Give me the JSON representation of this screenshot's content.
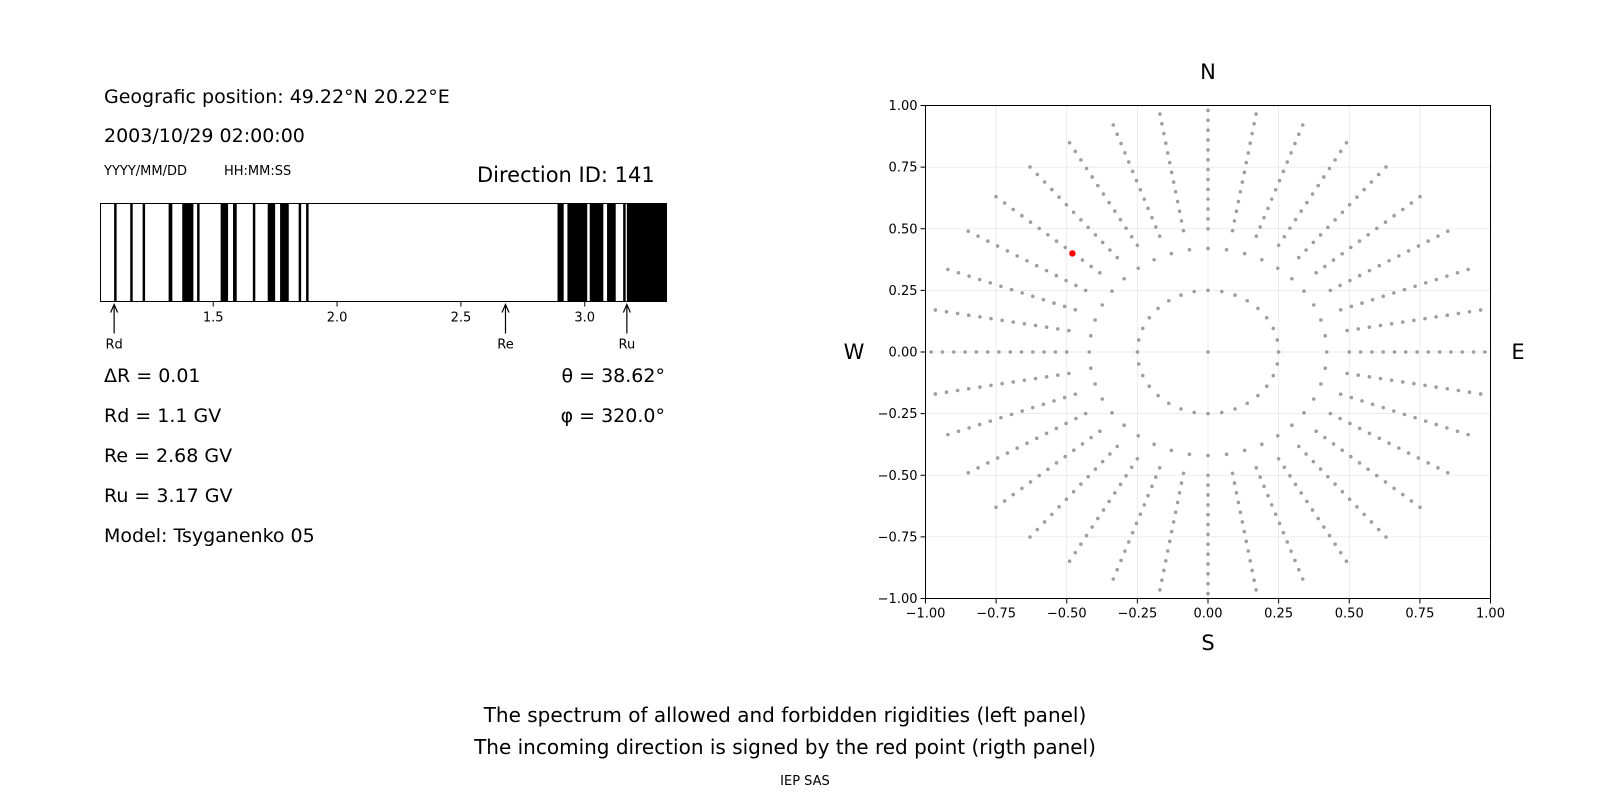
{
  "left_panel": {
    "position_line": "Geografic position: 49.22°N 20.22°E",
    "datetime": "2003/10/29 02:00:00",
    "date_format": "YYYY/MM/DD",
    "time_format": "HH:MM:SS",
    "direction_id": "Direction ID: 141",
    "delta_r": "ΔR = 0.01",
    "rd": "Rd = 1.1 GV",
    "re": "Re = 2.68 GV",
    "ru": "Ru = 3.17 GV",
    "model": "Model: Tsyganenko 05",
    "theta": "θ = 38.62°",
    "phi": "φ = 320.0°"
  },
  "spectrum_chart": {
    "type": "bar",
    "xlim": [
      1.045,
      3.33
    ],
    "ticks": [
      1.5,
      2.0,
      2.5,
      3.0
    ],
    "tick_labels": [
      "1.5",
      "2.0",
      "2.5",
      "3.0"
    ],
    "forbidden_bands": [
      [
        1.1,
        1.11
      ],
      [
        1.165,
        1.175
      ],
      [
        1.215,
        1.225
      ],
      [
        1.32,
        1.335
      ],
      [
        1.375,
        1.42
      ],
      [
        1.435,
        1.445
      ],
      [
        1.53,
        1.56
      ],
      [
        1.58,
        1.595
      ],
      [
        1.66,
        1.67
      ],
      [
        1.72,
        1.75
      ],
      [
        1.77,
        1.805
      ],
      [
        1.845,
        1.855
      ],
      [
        1.875,
        1.885
      ],
      [
        2.89,
        2.915
      ],
      [
        2.93,
        3.01
      ],
      [
        3.02,
        3.075
      ],
      [
        3.09,
        3.125
      ],
      [
        3.155,
        3.165
      ],
      [
        3.17,
        3.33
      ]
    ],
    "markers": [
      {
        "label": "Rd",
        "value": 1.1
      },
      {
        "label": "Re",
        "value": 2.68
      },
      {
        "label": "Ru",
        "value": 3.17
      }
    ]
  },
  "chart_data": {
    "type": "scatter",
    "xlim": [
      -1.0,
      1.0
    ],
    "ylim": [
      -1.0,
      1.0
    ],
    "xticks": [
      "−1.00",
      "−0.75",
      "−0.50",
      "−0.25",
      "0.00",
      "0.25",
      "0.50",
      "0.75",
      "1.00"
    ],
    "yticks": [
      "1.00",
      "0.75",
      "0.50",
      "0.25",
      "0.00",
      "−0.25",
      "−0.50",
      "−0.75",
      "−1.00"
    ],
    "grid": true,
    "compass": {
      "north": "N",
      "south": "S",
      "west": "W",
      "east": "E"
    },
    "direction_grid": {
      "rings": [
        0.25,
        0.42
      ],
      "ring_points": [
        32,
        40
      ],
      "ray_count": 36,
      "ray_step": 0.04,
      "ray_start": 0.5,
      "ray_end": 1.0,
      "point_color": "#9e9e9e"
    },
    "highlight_point": {
      "x": -0.48,
      "y": 0.4,
      "color": "#ff0000"
    }
  },
  "caption": {
    "line1": "The spectrum of allowed and forbidden rigidities (left panel)",
    "line2": "The incoming direction is signed by the red point (rigth panel)",
    "credit": "IEP SAS"
  }
}
